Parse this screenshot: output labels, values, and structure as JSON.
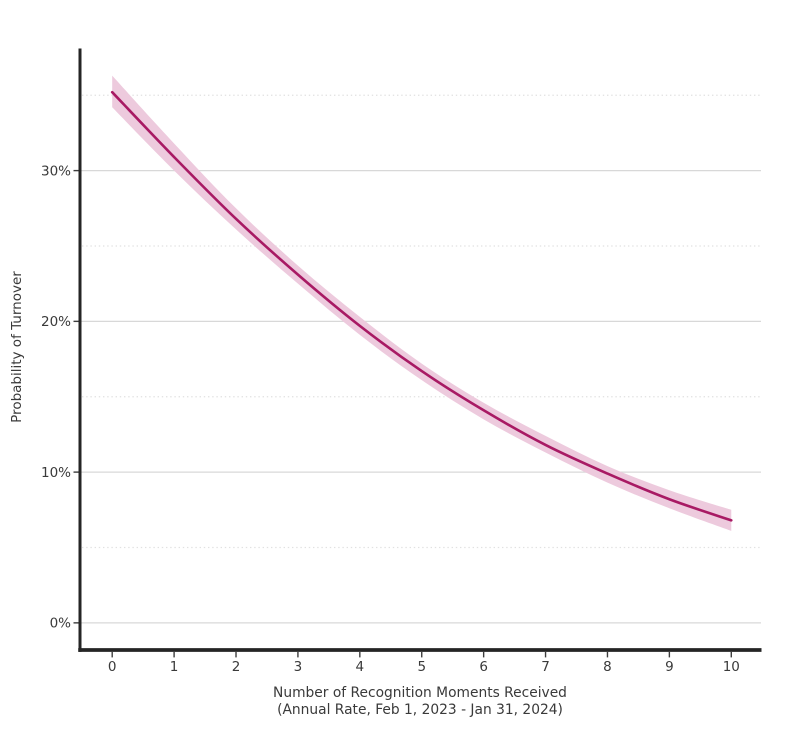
{
  "figure": {
    "colors": {
      "line": "#a81a64",
      "band": "#edcadd",
      "grid_major": "#d8d8d8",
      "grid_minor": "#e1e1e1",
      "spine": "#252525",
      "tick": "#3d3d3d",
      "text": "#3a3a3a",
      "background": "#ffffff"
    }
  },
  "chart_data": {
    "type": "line",
    "title": "",
    "xlabel_line1": "Number of Recognition Moments Received",
    "xlabel_line2": "(Annual Rate, Feb 1, 2023 - Jan 31, 2024)",
    "ylabel": "Probability of Turnover",
    "x": [
      0,
      1,
      2,
      3,
      4,
      5,
      6,
      7,
      8,
      9,
      10
    ],
    "series": [
      {
        "name": "predicted-probability-of-turnover",
        "values_pct": [
          35.2,
          30.9,
          26.8,
          23.1,
          19.7,
          16.7,
          14.1,
          11.8,
          9.9,
          8.2,
          6.8
        ]
      }
    ],
    "ci_lower_pct": [
      34.2,
      30.0,
      26.1,
      22.5,
      19.1,
      16.1,
      13.5,
      11.3,
      9.3,
      7.6,
      6.1
    ],
    "ci_upper_pct": [
      36.3,
      31.8,
      27.5,
      23.7,
      20.3,
      17.2,
      14.6,
      12.4,
      10.4,
      8.8,
      7.5
    ],
    "x_tick_labels": [
      "0",
      "1",
      "2",
      "3",
      "4",
      "5",
      "6",
      "7",
      "8",
      "9",
      "10"
    ],
    "x_tick_values": [
      0,
      1,
      2,
      3,
      4,
      5,
      6,
      7,
      8,
      9,
      10
    ],
    "y_ticks_major": [
      {
        "value": 0,
        "label": "0%"
      },
      {
        "value": 10,
        "label": "10%"
      },
      {
        "value": 20,
        "label": "20%"
      },
      {
        "value": 30,
        "label": "30%"
      }
    ],
    "y_gridlines_minor": [
      5,
      15,
      25,
      35
    ],
    "xlim": [
      -0.52,
      10.48
    ],
    "ylim_pct": [
      -1.8,
      38.0
    ],
    "grid": "horizontal-only",
    "legend": "none"
  }
}
